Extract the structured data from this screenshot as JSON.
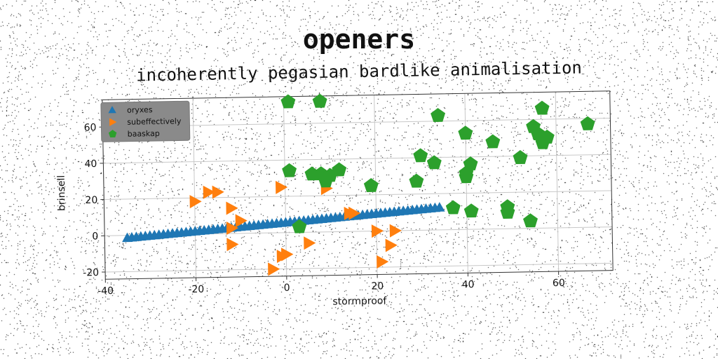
{
  "chart_data": {
    "type": "scatter",
    "title": "openers",
    "subtitle": "incoherently pegasian bardlike animalisation",
    "xlabel": "stormproof",
    "ylabel": "brinsell",
    "xlim": [
      -40,
      72
    ],
    "ylim": [
      -24,
      75
    ],
    "xticks": [
      -40,
      -20,
      0,
      20,
      40,
      60
    ],
    "yticks": [
      -20,
      0,
      20,
      40,
      60
    ],
    "grid": true,
    "legend_position": "top-left",
    "series": [
      {
        "name": "oryxes",
        "marker": "triangle-up",
        "color": "#1f77b4",
        "x": [
          -35,
          -34,
          -33,
          -32,
          -31,
          -30,
          -29,
          -28,
          -27,
          -26,
          -25,
          -24,
          -23,
          -22,
          -21,
          -20,
          -19,
          -18,
          -17,
          -16,
          -15,
          -14,
          -13,
          -12,
          -11,
          -10,
          -9,
          -8,
          -7,
          -6,
          -5,
          -4,
          -3,
          -2,
          -1,
          0,
          1,
          2,
          3,
          4,
          5,
          6,
          7,
          8,
          9,
          10,
          11,
          12,
          13,
          14,
          15,
          16,
          17,
          18,
          19,
          20,
          21,
          22,
          23,
          24,
          25,
          26,
          27,
          28,
          29,
          30,
          31,
          32,
          33,
          34
        ],
        "y": [
          -1.5,
          -1.3,
          -1.1,
          -0.9,
          -0.7,
          -0.5,
          -0.3,
          -0.1,
          0.1,
          0.3,
          0.5,
          0.7,
          0.9,
          1.1,
          1.3,
          1.5,
          1.7,
          1.9,
          2.1,
          2.3,
          2.5,
          2.7,
          2.9,
          3.1,
          3.3,
          3.5,
          3.7,
          3.9,
          4.1,
          4.3,
          4.5,
          4.7,
          4.9,
          5.1,
          5.3,
          5.5,
          5.7,
          5.9,
          6.1,
          6.3,
          6.5,
          6.7,
          6.9,
          7.1,
          7.3,
          7.5,
          7.7,
          7.9,
          8.1,
          8.3,
          8.5,
          8.7,
          8.9,
          9.1,
          9.3,
          9.5,
          9.7,
          9.9,
          10.1,
          10.3,
          10.5,
          10.7,
          10.9,
          11.1,
          11.3,
          11.5,
          11.7,
          11.9,
          12.1,
          12.3
        ]
      },
      {
        "name": "subeffectively",
        "marker": "triangle-right",
        "color": "#ff7f0e",
        "x": [
          -20,
          -17,
          -15,
          -12,
          -12,
          -12,
          -10,
          -1,
          9,
          14,
          15,
          20,
          23,
          24,
          21,
          -1,
          0,
          0,
          5,
          -3
        ],
        "y": [
          18,
          23,
          23,
          14,
          3,
          -6,
          7,
          25,
          24,
          10,
          10,
          0,
          -8,
          0,
          -17,
          -13,
          -12,
          -12,
          -6,
          -20
        ]
      },
      {
        "name": "baaskap",
        "marker": "pentagon",
        "color": "#2ca02c",
        "x": [
          1,
          8,
          34,
          57,
          67,
          55,
          56,
          58,
          57,
          40,
          46,
          52,
          30,
          33,
          41,
          40,
          29,
          19,
          1,
          6,
          8,
          10,
          12,
          9,
          3,
          37,
          41,
          49,
          49,
          54,
          40
        ],
        "y": [
          72,
          72,
          63,
          66,
          57,
          56,
          52,
          50,
          47,
          53,
          48,
          39,
          41,
          37,
          36,
          29,
          27,
          25,
          34,
          32,
          32,
          31,
          34,
          28,
          3,
          12,
          10,
          12,
          9,
          4,
          31
        ]
      }
    ]
  }
}
